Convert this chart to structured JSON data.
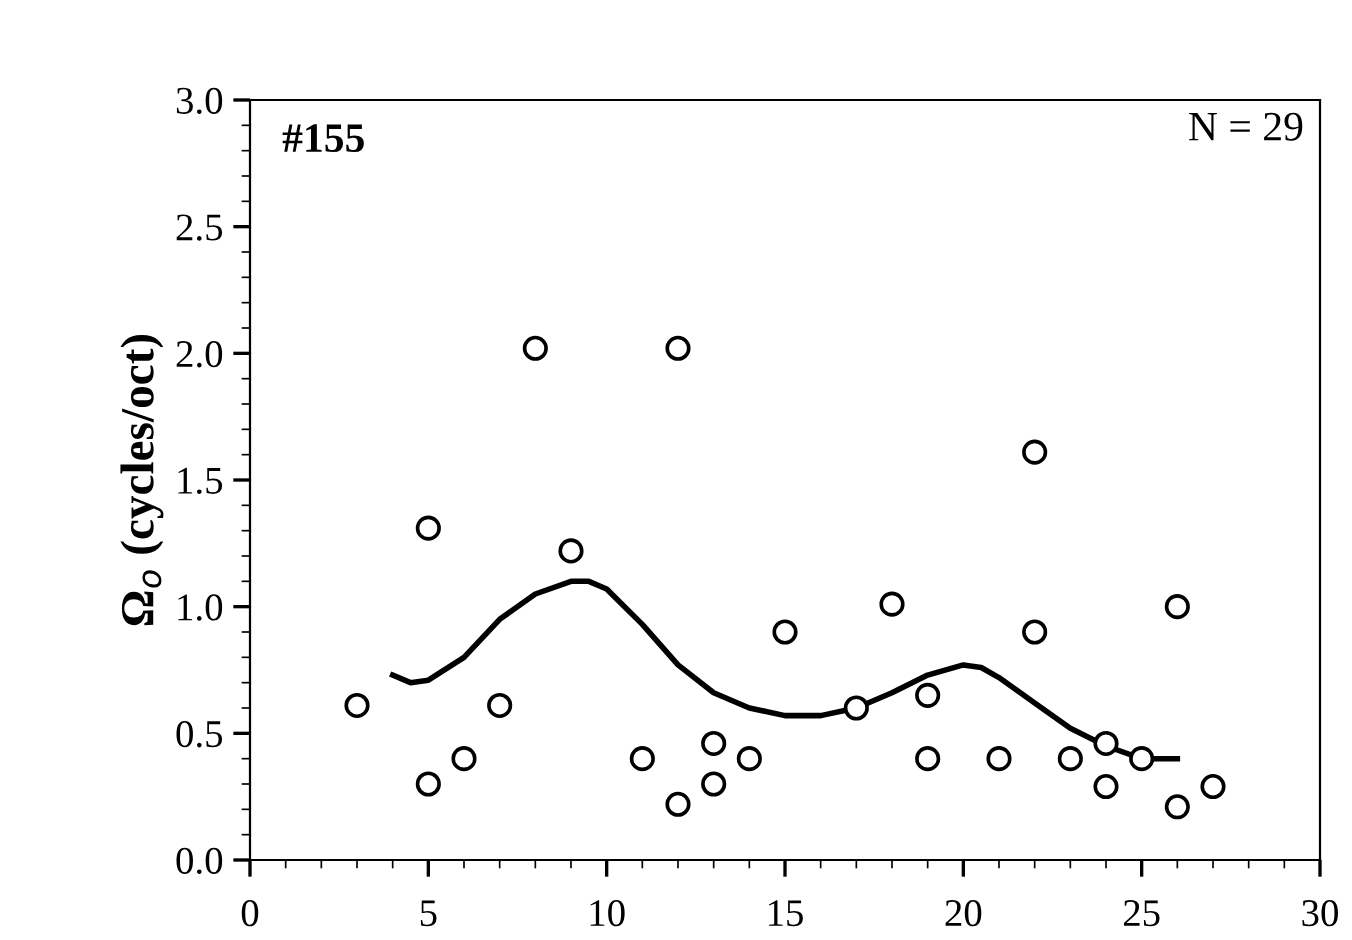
{
  "chart_data": {
    "type": "scatter",
    "ylabel": "Ω$_{o}$ (cycles/oct)",
    "annotations": [
      "#155",
      "N = 29"
    ],
    "xlim": [
      0,
      30
    ],
    "xticks": [
      0,
      5,
      10,
      15,
      20,
      25,
      30
    ],
    "ylim": [
      0,
      3
    ],
    "yticks": [
      {
        "value": 0,
        "label": "0.0"
      },
      {
        "value": 0.5,
        "label": "0.5"
      },
      {
        "value": 1,
        "label": "1.0"
      },
      {
        "value": 1.5,
        "label": "1.5"
      },
      {
        "value": 2,
        "label": "2.0"
      },
      {
        "value": 2.5,
        "label": "2.5"
      },
      {
        "value": 3,
        "label": "3.0"
      }
    ],
    "grid": false,
    "legend": false,
    "series": [
      {
        "marker": "circle",
        "color": "#000000",
        "x": [
          3,
          5,
          5,
          6,
          7,
          8,
          9,
          11,
          12,
          12,
          13,
          13,
          14,
          15,
          17,
          18,
          19,
          19,
          21,
          22,
          22,
          23,
          24,
          24,
          25,
          26,
          26,
          27
        ],
        "values": [
          0.61,
          1.31,
          0.3,
          0.4,
          0.61,
          2.02,
          1.22,
          0.4,
          2.02,
          0.22,
          0.46,
          0.3,
          0.4,
          0.9,
          0.6,
          1.01,
          0.65,
          0.4,
          0.4,
          1.61,
          0.9,
          0.4,
          0.46,
          0.29,
          0.4,
          1.0,
          0.21,
          0.29
        ]
      },
      {
        "type": "line",
        "marker": "none",
        "line_style": "solid",
        "color": "#000000",
        "x": [
          4,
          4.5,
          5,
          6,
          7,
          8,
          9,
          9.5,
          10,
          11,
          12,
          13,
          14,
          15,
          16,
          17,
          18,
          19,
          20,
          20.5,
          21,
          22,
          23,
          24,
          25,
          26
        ],
        "values": [
          0.73,
          0.7,
          0.71,
          0.8,
          0.95,
          1.05,
          1.1,
          1.1,
          1.07,
          0.93,
          0.77,
          0.66,
          0.6,
          0.57,
          0.57,
          0.6,
          0.66,
          0.73,
          0.77,
          0.76,
          0.72,
          0.62,
          0.52,
          0.45,
          0.4,
          0.4
        ]
      }
    ]
  }
}
